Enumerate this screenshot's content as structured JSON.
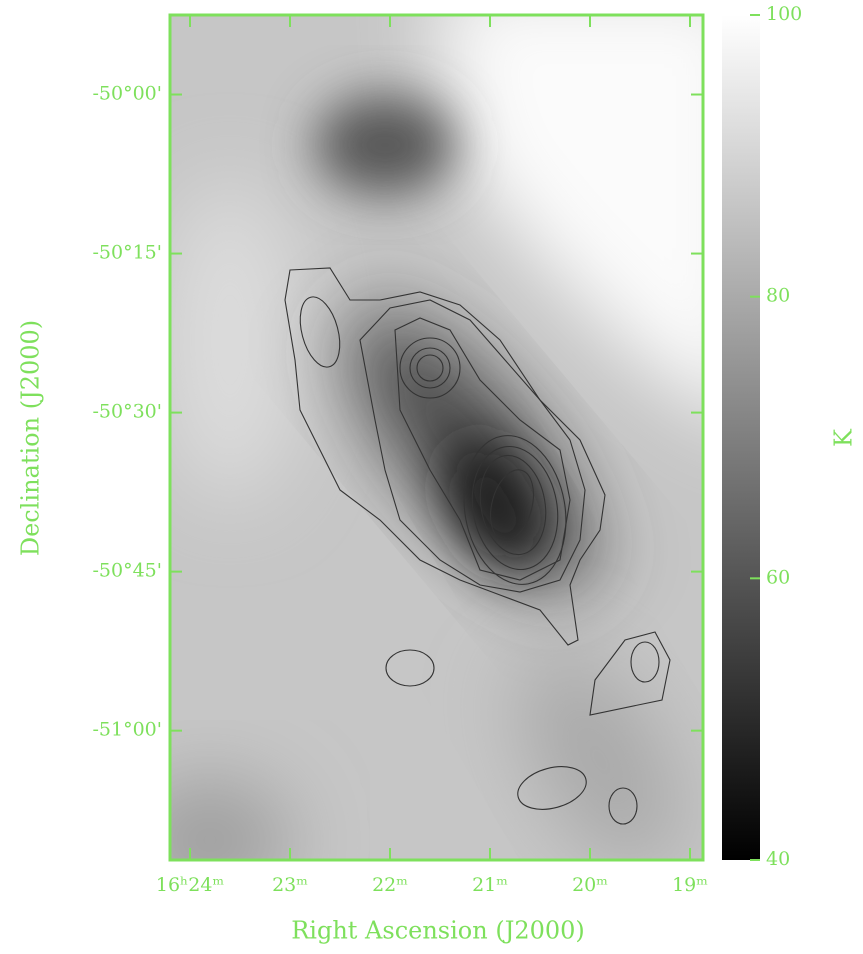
{
  "chart_data": {
    "type": "image",
    "xlabel": "Right Ascension (J2000)",
    "ylabel": "Declination (J2000)",
    "xlim": [
      984.2,
      978.87
    ],
    "xticks": [
      {
        "value": 984,
        "label": "16ʰ24ᵐ"
      },
      {
        "value": 983,
        "label": "23ᵐ"
      },
      {
        "value": 982,
        "label": "22ᵐ"
      },
      {
        "value": 981,
        "label": "21ᵐ"
      },
      {
        "value": 980,
        "label": "20ᵐ"
      },
      {
        "value": 979,
        "label": "19ᵐ"
      }
    ],
    "ylim": [
      -3072.2,
      -2992.5
    ],
    "yticks": [
      {
        "value": -3000,
        "label": "-50°00'"
      },
      {
        "value": -3015,
        "label": "-50°15'"
      },
      {
        "value": -3030,
        "label": "-50°30'"
      },
      {
        "value": -3045,
        "label": "-50°45'"
      },
      {
        "value": -3060,
        "label": "-51°00'"
      }
    ],
    "colorbar": {
      "label": "K",
      "lim": [
        40,
        100
      ],
      "ticks": [
        40,
        60,
        80,
        100
      ]
    },
    "color": "#7ee05c"
  }
}
